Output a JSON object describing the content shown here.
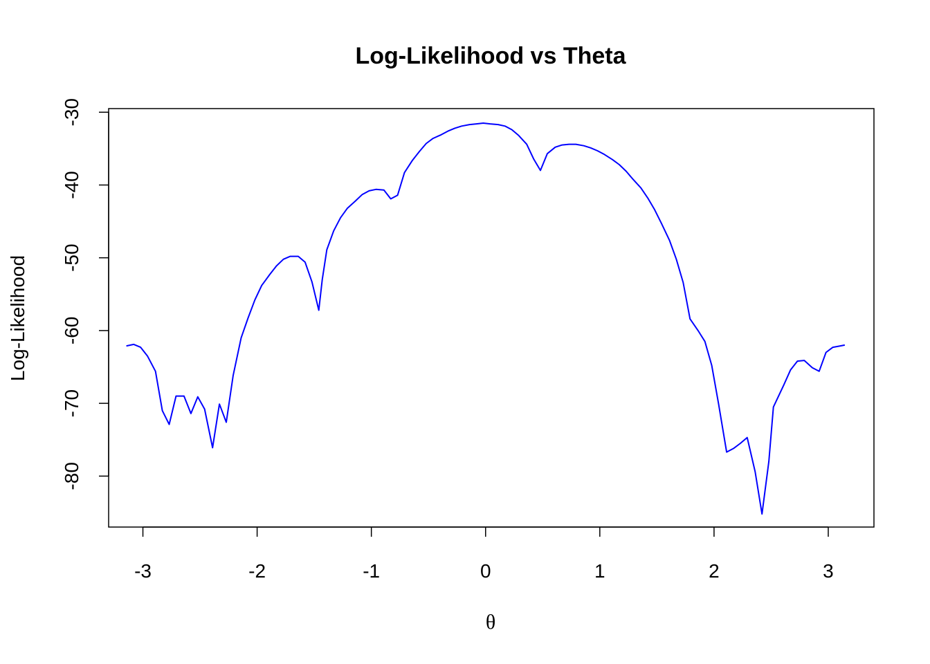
{
  "chart_data": {
    "type": "line",
    "title": "Log-Likelihood vs Theta",
    "xlabel": "θ",
    "ylabel": "Log-Likelihood",
    "xlim": [
      -3.3,
      3.4
    ],
    "ylim": [
      -87,
      -29.5
    ],
    "xticks": [
      -3,
      -2,
      -1,
      0,
      1,
      2,
      3
    ],
    "xtick_labels": [
      "-3",
      "-2",
      "-1",
      "0",
      "1",
      "2",
      "3"
    ],
    "yticks": [
      -30,
      -40,
      -50,
      -60,
      -70,
      -80
    ],
    "ytick_labels": [
      "-30",
      "-40",
      "-50",
      "-60",
      "-70",
      "-80"
    ],
    "grid": false,
    "legend": "none",
    "series": [
      {
        "color": "#0000ff",
        "x": [
          -3.14,
          -3.08,
          -3.02,
          -2.96,
          -2.89,
          -2.83,
          -2.77,
          -2.71,
          -2.64,
          -2.58,
          -2.52,
          -2.46,
          -2.39,
          -2.33,
          -2.27,
          -2.21,
          -2.14,
          -2.08,
          -2.02,
          -1.96,
          -1.89,
          -1.83,
          -1.77,
          -1.71,
          -1.64,
          -1.58,
          -1.52,
          -1.46,
          -1.43,
          -1.39,
          -1.33,
          -1.27,
          -1.21,
          -1.14,
          -1.08,
          -1.02,
          -0.96,
          -0.89,
          -0.83,
          -0.77,
          -0.71,
          -0.64,
          -0.58,
          -0.52,
          -0.46,
          -0.39,
          -0.33,
          -0.27,
          -0.21,
          -0.14,
          -0.08,
          -0.02,
          0.04,
          0.11,
          0.17,
          0.23,
          0.29,
          0.36,
          0.42,
          0.48,
          0.54,
          0.61,
          0.67,
          0.73,
          0.79,
          0.86,
          0.92,
          0.98,
          1.04,
          1.11,
          1.17,
          1.23,
          1.29,
          1.36,
          1.42,
          1.48,
          1.54,
          1.61,
          1.67,
          1.73,
          1.79,
          1.86,
          1.92,
          1.98,
          2.04,
          2.11,
          2.17,
          2.23,
          2.29,
          2.36,
          2.42,
          2.48,
          2.52,
          2.61,
          2.67,
          2.73,
          2.79,
          2.86,
          2.92,
          2.98,
          3.04,
          3.11,
          3.14
        ],
        "y": [
          -62.1,
          -61.9,
          -62.3,
          -63.5,
          -65.6,
          -71.0,
          -72.9,
          -69.0,
          -69.0,
          -71.4,
          -69.1,
          -70.8,
          -76.1,
          -70.1,
          -72.6,
          -66.2,
          -61.0,
          -58.3,
          -55.8,
          -53.8,
          -52.3,
          -51.1,
          -50.2,
          -49.8,
          -49.8,
          -50.6,
          -53.3,
          -57.2,
          -53.0,
          -48.9,
          -46.3,
          -44.5,
          -43.2,
          -42.2,
          -41.3,
          -40.8,
          -40.6,
          -40.7,
          -41.9,
          -41.4,
          -38.3,
          -36.6,
          -35.4,
          -34.3,
          -33.6,
          -33.1,
          -32.6,
          -32.2,
          -31.9,
          -31.7,
          -31.6,
          -31.5,
          -31.6,
          -31.7,
          -31.9,
          -32.4,
          -33.2,
          -34.4,
          -36.4,
          -38.0,
          -35.7,
          -34.8,
          -34.5,
          -34.4,
          -34.4,
          -34.6,
          -34.9,
          -35.3,
          -35.8,
          -36.5,
          -37.2,
          -38.1,
          -39.2,
          -40.4,
          -41.8,
          -43.4,
          -45.3,
          -47.6,
          -50.2,
          -53.4,
          -58.4,
          -60.0,
          -61.5,
          -64.8,
          -70.1,
          -76.7,
          -76.2,
          -75.5,
          -74.7,
          -79.4,
          -85.2,
          -78.0,
          -70.5,
          -67.5,
          -65.4,
          -64.2,
          -64.1,
          -65.1,
          -65.6,
          -63.0,
          -62.3,
          -62.1,
          -62.0
        ]
      }
    ]
  }
}
